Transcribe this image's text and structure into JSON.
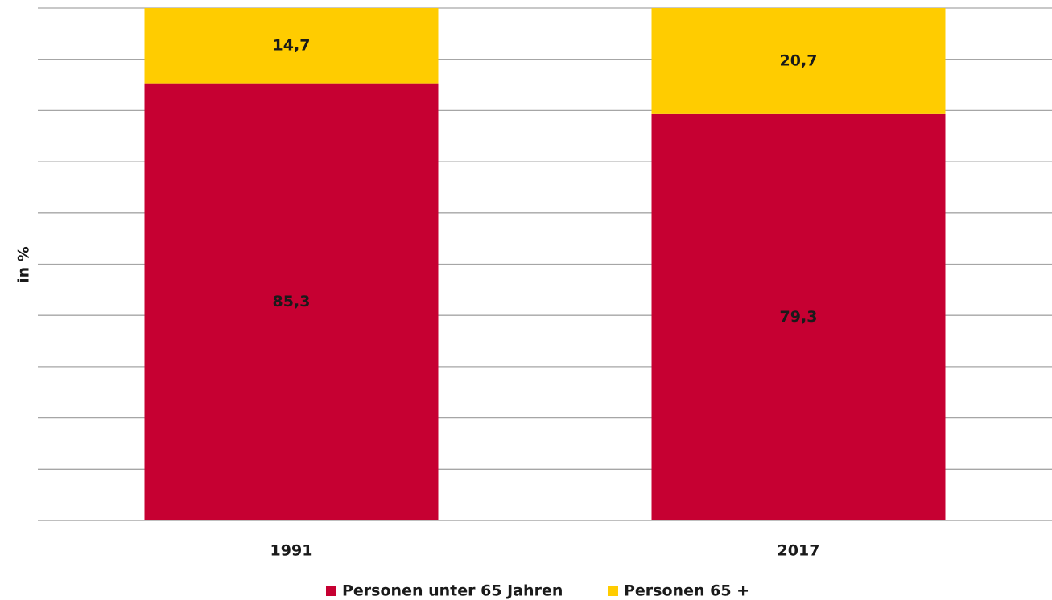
{
  "chart_data": {
    "type": "stacked_bar",
    "y_label": "in %",
    "categories": [
      "1991",
      "2017"
    ],
    "series": [
      {
        "name": "Personen unter 65 Jahren",
        "color": "#c60032",
        "values": [
          85.3,
          79.3
        ],
        "value_labels": [
          "85,3",
          "79,3"
        ]
      },
      {
        "name": "Personen 65 +",
        "color": "#ffcc00",
        "values": [
          14.7,
          20.7
        ],
        "value_labels": [
          "14,7",
          "20,7"
        ]
      }
    ],
    "ylim": [
      0,
      100
    ],
    "yticks": [
      0,
      10,
      20,
      30,
      40,
      50,
      60,
      70,
      80,
      90,
      100
    ],
    "grid": true,
    "legend": "bottom"
  }
}
